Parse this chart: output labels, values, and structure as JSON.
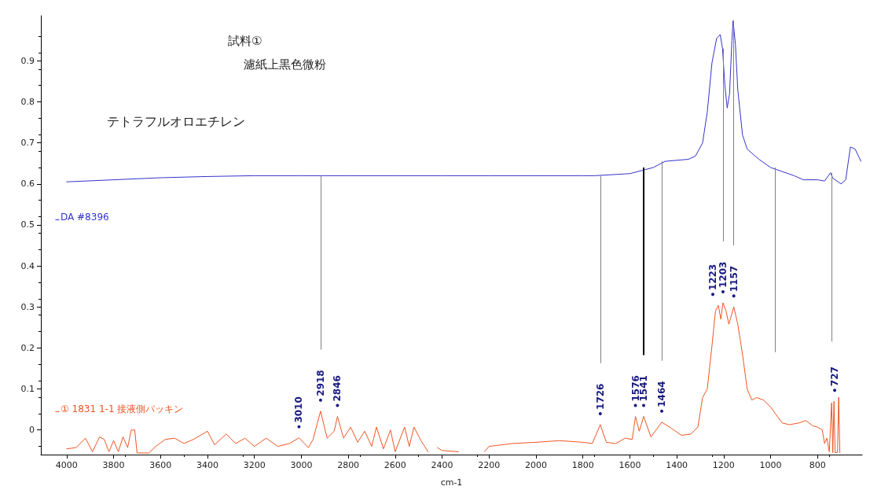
{
  "chart_data": {
    "type": "line",
    "xlabel": "cm-1",
    "xlim": [
      4110,
      610
    ],
    "xticks": [
      4000,
      3800,
      3600,
      3400,
      3200,
      3000,
      2800,
      2600,
      2400,
      2200,
      2000,
      1800,
      1600,
      1400,
      1200,
      1000,
      800
    ],
    "ylim": [
      -0.06,
      1.01
    ],
    "yticks": [
      0,
      0.1,
      0.2,
      0.3,
      0.4,
      0.5,
      0.6,
      0.7,
      0.8,
      0.9
    ],
    "grid": false,
    "legend": "left",
    "marker": "none",
    "line_style": "solid",
    "series": [
      {
        "name": "DA #8396",
        "color": "#3333cc",
        "x": [
          4000,
          3800,
          3600,
          3400,
          3200,
          3000,
          2800,
          2600,
          2400,
          2200,
          2000,
          1800,
          1750,
          1600,
          1500,
          1450,
          1350,
          1320,
          1290,
          1270,
          1250,
          1230,
          1215,
          1205,
          1195,
          1185,
          1175,
          1165,
          1160,
          1150,
          1140,
          1120,
          1100,
          1050,
          1000,
          950,
          900,
          860,
          800,
          770,
          745,
          735,
          700,
          680,
          660,
          640,
          615
        ],
        "values": [
          0.605,
          0.61,
          0.615,
          0.618,
          0.62,
          0.62,
          0.62,
          0.62,
          0.62,
          0.62,
          0.62,
          0.62,
          0.62,
          0.625,
          0.64,
          0.655,
          0.66,
          0.668,
          0.7,
          0.775,
          0.895,
          0.955,
          0.964,
          0.93,
          0.84,
          0.785,
          0.82,
          0.95,
          0.998,
          0.94,
          0.83,
          0.72,
          0.685,
          0.66,
          0.64,
          0.63,
          0.62,
          0.61,
          0.61,
          0.607,
          0.627,
          0.614,
          0.6,
          0.61,
          0.69,
          0.685,
          0.655
        ]
      },
      {
        "name": "① 1831 1-1 接液側パッキン",
        "color": "#ee5522",
        "x": [
          4000,
          3960,
          3920,
          3890,
          3860,
          3840,
          3820,
          3800,
          3780,
          3760,
          3740,
          3725,
          3710,
          3700,
          3650,
          3620,
          3580,
          3540,
          3500,
          3460,
          3400,
          3370,
          3320,
          3280,
          3240,
          3200,
          3150,
          3100,
          3050,
          3010,
          2970,
          2950,
          2918,
          2890,
          2860,
          2846,
          2820,
          2790,
          2760,
          2730,
          2700,
          2680,
          2650,
          2620,
          2600,
          2560,
          2540,
          2520,
          2490,
          2460,
          2440,
          2420,
          2400,
          2330,
          2300,
          2220,
          2200,
          2100,
          2000,
          1900,
          1800,
          1760,
          1726,
          1700,
          1660,
          1620,
          1590,
          1576,
          1560,
          1541,
          1510,
          1464,
          1430,
          1380,
          1340,
          1310,
          1290,
          1270,
          1250,
          1235,
          1223,
          1212,
          1203,
          1190,
          1178,
          1157,
          1140,
          1120,
          1100,
          1080,
          1060,
          1030,
          1000,
          980,
          950,
          920,
          880,
          850,
          820,
          800,
          780,
          770,
          760,
          750,
          740,
          735,
          730,
          725,
          715,
          710,
          705
        ],
        "values": [
          -0.046,
          -0.043,
          -0.02,
          -0.053,
          -0.017,
          -0.023,
          -0.053,
          -0.026,
          -0.053,
          -0.017,
          -0.043,
          0,
          0,
          -0.056,
          -0.056,
          -0.04,
          -0.023,
          -0.02,
          -0.033,
          -0.023,
          -0.003,
          -0.036,
          -0.01,
          -0.033,
          -0.02,
          -0.04,
          -0.02,
          -0.04,
          -0.033,
          -0.019,
          -0.043,
          -0.023,
          0.046,
          -0.02,
          -0.003,
          0.033,
          -0.02,
          0.007,
          -0.03,
          -0.003,
          -0.04,
          0.007,
          -0.046,
          0,
          -0.053,
          0.007,
          -0.04,
          0.007,
          -0.026,
          -0.053,
          null,
          -0.043,
          -0.05,
          -0.053,
          null,
          -0.053,
          -0.04,
          -0.033,
          -0.03,
          -0.026,
          -0.03,
          -0.033,
          0.013,
          -0.03,
          -0.033,
          -0.02,
          -0.023,
          0.033,
          -0.003,
          0.033,
          -0.017,
          0.019,
          0.007,
          -0.013,
          -0.01,
          0.007,
          0.079,
          0.1,
          0.205,
          0.29,
          0.304,
          0.27,
          0.31,
          0.29,
          0.258,
          0.3,
          0.258,
          0.185,
          0.1,
          0.073,
          0.079,
          0.073,
          0.056,
          0.04,
          0.017,
          0.013,
          0.017,
          0.023,
          0.01,
          0.007,
          0,
          -0.033,
          -0.02,
          -0.053,
          0.066,
          -0.055,
          0.07,
          -0.055,
          -0.055,
          0.08,
          -0.055
        ]
      }
    ],
    "ref_lines": [
      {
        "axis": "x",
        "value": 2918,
        "color": "#808080"
      },
      {
        "axis": "x",
        "value": 1726,
        "color": "#808080"
      },
      {
        "axis": "x",
        "value": 1541,
        "color": "#000000"
      },
      {
        "axis": "x",
        "value": 1464,
        "color": "#808080"
      },
      {
        "axis": "x",
        "value": 1203,
        "color": "#808080"
      },
      {
        "axis": "x",
        "value": 1157,
        "color": "#808080"
      },
      {
        "axis": "x",
        "value": 980,
        "color": "#808080"
      },
      {
        "axis": "x",
        "value": 740,
        "color": "#808080"
      }
    ],
    "annotations": [
      "試料①",
      "濾紙上黒色微粉",
      "テトラフルオロエチレン",
      {
        "text": "3010",
        "x": 3010,
        "y": -0.019
      },
      {
        "text": "2918",
        "x": 2918,
        "y": 0.046
      },
      {
        "text": "2846",
        "x": 2846,
        "y": 0.033
      },
      {
        "text": "1726",
        "x": 1726,
        "y": 0.013
      },
      {
        "text": "1576",
        "x": 1576,
        "y": 0.033
      },
      {
        "text": "1541",
        "x": 1541,
        "y": 0.033
      },
      {
        "text": "1464",
        "x": 1464,
        "y": 0.019
      },
      {
        "text": "1223",
        "x": 1223,
        "y": 0.304
      },
      {
        "text": "1203",
        "x": 1203,
        "y": 0.31
      },
      {
        "text": "1157",
        "x": 1157,
        "y": 0.3
      },
      {
        "text": "727",
        "x": 727,
        "y": 0.07
      }
    ]
  }
}
